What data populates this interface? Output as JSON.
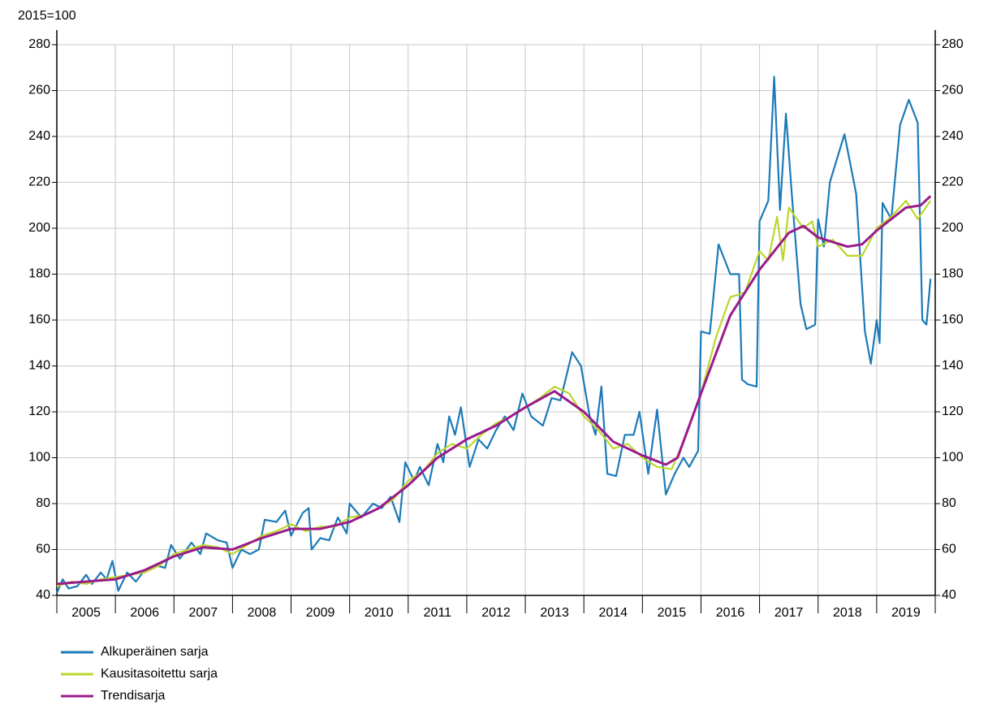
{
  "chart_data": {
    "type": "line",
    "ylabel": "2015=100",
    "xlim": [
      2005,
      2020
    ],
    "xticks": [
      {
        "value": 2005.5,
        "label": "2005"
      },
      {
        "value": 2006.5,
        "label": "2006"
      },
      {
        "value": 2007.5,
        "label": "2007"
      },
      {
        "value": 2008.5,
        "label": "2008"
      },
      {
        "value": 2009.5,
        "label": "2009"
      },
      {
        "value": 2010.5,
        "label": "2010"
      },
      {
        "value": 2011.5,
        "label": "2011"
      },
      {
        "value": 2012.5,
        "label": "2012"
      },
      {
        "value": 2013.5,
        "label": "2013"
      },
      {
        "value": 2014.5,
        "label": "2014"
      },
      {
        "value": 2015.5,
        "label": "2015"
      },
      {
        "value": 2016.5,
        "label": "2016"
      },
      {
        "value": 2017.5,
        "label": "2017"
      },
      {
        "value": 2018.5,
        "label": "2018"
      },
      {
        "value": 2019.5,
        "label": "2019"
      }
    ],
    "ylim": [
      40,
      280
    ],
    "yticks": [
      40,
      60,
      80,
      100,
      120,
      140,
      160,
      180,
      200,
      220,
      240,
      260,
      280
    ],
    "grid": true,
    "legend": "bottom-left",
    "series": [
      {
        "name": "Alkuperäinen sarja",
        "color": "#1b7ab8",
        "x": [
          2005.0,
          2005.1,
          2005.2,
          2005.35,
          2005.5,
          2005.6,
          2005.75,
          2005.85,
          2005.95,
          2006.05,
          2006.2,
          2006.35,
          2006.5,
          2006.7,
          2006.85,
          2006.95,
          2007.1,
          2007.3,
          2007.45,
          2007.55,
          2007.75,
          2007.9,
          2008.0,
          2008.15,
          2008.3,
          2008.45,
          2008.55,
          2008.75,
          2008.9,
          2009.0,
          2009.2,
          2009.3,
          2009.35,
          2009.5,
          2009.65,
          2009.8,
          2009.95,
          2010.0,
          2010.2,
          2010.4,
          2010.55,
          2010.7,
          2010.85,
          2010.95,
          2011.1,
          2011.2,
          2011.35,
          2011.5,
          2011.6,
          2011.7,
          2011.8,
          2011.9,
          2012.05,
          2012.2,
          2012.35,
          2012.5,
          2012.65,
          2012.8,
          2012.95,
          2013.1,
          2013.3,
          2013.45,
          2013.6,
          2013.8,
          2013.95,
          2014.1,
          2014.2,
          2014.3,
          2014.4,
          2014.55,
          2014.7,
          2014.85,
          2014.95,
          2015.1,
          2015.25,
          2015.4,
          2015.55,
          2015.7,
          2015.8,
          2015.95,
          2016.0,
          2016.15,
          2016.3,
          2016.5,
          2016.65,
          2016.7,
          2016.8,
          2016.95,
          2017.0,
          2017.15,
          2017.25,
          2017.35,
          2017.45,
          2017.55,
          2017.7,
          2017.8,
          2017.95,
          2018.0,
          2018.1,
          2018.2,
          2018.45,
          2018.65,
          2018.8,
          2018.9,
          2019.0,
          2019.05,
          2019.1,
          2019.25,
          2019.4,
          2019.55,
          2019.7,
          2019.78,
          2019.85,
          2019.92
        ],
        "values": [
          41,
          47,
          43,
          44,
          49,
          45,
          50,
          47,
          55,
          42,
          50,
          46,
          51,
          53,
          52,
          62,
          56,
          63,
          58,
          67,
          64,
          63,
          52,
          60,
          58,
          60,
          73,
          72,
          77,
          66,
          76,
          78,
          60,
          65,
          64,
          74,
          67,
          80,
          74,
          80,
          78,
          83,
          72,
          98,
          90,
          96,
          88,
          106,
          98,
          118,
          110,
          122,
          96,
          108,
          104,
          112,
          118,
          112,
          128,
          118,
          114,
          126,
          125,
          146,
          140,
          118,
          110,
          131,
          93,
          92,
          110,
          110,
          120,
          93,
          121,
          84,
          93,
          100,
          96,
          103,
          155,
          154,
          193,
          180,
          180,
          134,
          132,
          131,
          203,
          212,
          266,
          208,
          250,
          215,
          167,
          156,
          158,
          204,
          192,
          220,
          241,
          215,
          155,
          141,
          160,
          150,
          211,
          204,
          245,
          256,
          246,
          160,
          158,
          178
        ]
      },
      {
        "name": "Kausitasoitettu sarja",
        "color": "#bcd62c",
        "x": [
          2005.0,
          2005.25,
          2005.5,
          2005.75,
          2006.0,
          2006.25,
          2006.5,
          2006.75,
          2007.0,
          2007.25,
          2007.5,
          2007.75,
          2008.0,
          2008.25,
          2008.5,
          2008.75,
          2009.0,
          2009.25,
          2009.5,
          2009.75,
          2010.0,
          2010.25,
          2010.5,
          2010.75,
          2011.0,
          2011.25,
          2011.5,
          2011.75,
          2012.0,
          2012.25,
          2012.5,
          2012.75,
          2013.0,
          2013.25,
          2013.5,
          2013.75,
          2014.0,
          2014.25,
          2014.5,
          2014.75,
          2015.0,
          2015.25,
          2015.5,
          2015.75,
          2016.0,
          2016.25,
          2016.5,
          2016.75,
          2017.0,
          2017.15,
          2017.3,
          2017.4,
          2017.5,
          2017.75,
          2017.9,
          2018.0,
          2018.25,
          2018.5,
          2018.75,
          2019.0,
          2019.25,
          2019.5,
          2019.7,
          2019.92
        ],
        "values": [
          44,
          46,
          45,
          47,
          48,
          49,
          50,
          53,
          58,
          60,
          62,
          61,
          58,
          62,
          66,
          68,
          71,
          68,
          70,
          70,
          74,
          75,
          78,
          82,
          90,
          94,
          102,
          106,
          104,
          110,
          115,
          118,
          122,
          126,
          131,
          128,
          118,
          112,
          104,
          106,
          100,
          96,
          95,
          110,
          128,
          152,
          170,
          172,
          190,
          186,
          205,
          186,
          209,
          200,
          203,
          192,
          195,
          188,
          188,
          200,
          205,
          212,
          204,
          212
        ]
      },
      {
        "name": "Trendisarja",
        "color": "#9b1a8b",
        "x": [
          2005.0,
          2005.5,
          2006.0,
          2006.5,
          2007.0,
          2007.5,
          2008.0,
          2008.5,
          2009.0,
          2009.5,
          2010.0,
          2010.5,
          2011.0,
          2011.5,
          2012.0,
          2012.5,
          2013.0,
          2013.5,
          2014.0,
          2014.5,
          2015.0,
          2015.4,
          2015.6,
          2016.0,
          2016.5,
          2017.0,
          2017.5,
          2017.75,
          2018.0,
          2018.5,
          2018.75,
          2019.0,
          2019.5,
          2019.75,
          2019.92
        ],
        "values": [
          45,
          46,
          47,
          51,
          57,
          61,
          60,
          65,
          69,
          69,
          72,
          78,
          88,
          100,
          108,
          114,
          122,
          129,
          120,
          107,
          101,
          97,
          100,
          128,
          162,
          182,
          198,
          201,
          196,
          192,
          193,
          199,
          209,
          210,
          214
        ]
      }
    ]
  }
}
